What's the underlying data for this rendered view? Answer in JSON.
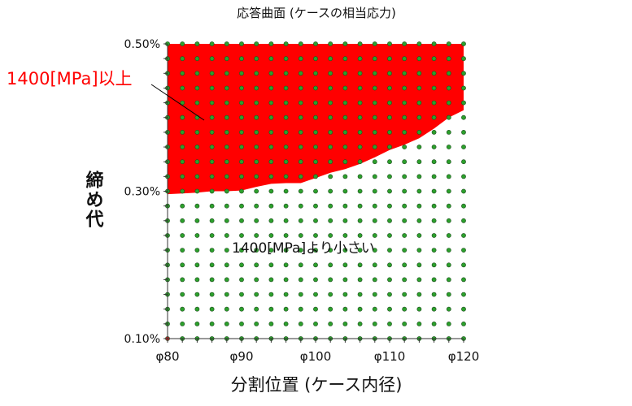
{
  "chart_data": {
    "type": "scatter",
    "title": "応答曲面 (ケースの相当応力)",
    "xlabel": "分割位置 (ケース内径)",
    "ylabel": "締め代",
    "x_ticks": [
      "φ80",
      "φ90",
      "φ100",
      "φ110",
      "φ120"
    ],
    "y_ticks": [
      "0.10%",
      "0.30%",
      "0.50%"
    ],
    "xlim": [
      80,
      120
    ],
    "ylim": [
      0.1,
      0.5
    ],
    "x_grid": [
      80,
      82,
      84,
      86,
      88,
      90,
      92,
      94,
      96,
      98,
      100,
      102,
      104,
      106,
      108,
      110,
      112,
      114,
      116,
      118,
      120
    ],
    "y_grid": [
      0.1,
      0.12,
      0.14,
      0.16,
      0.18,
      0.2,
      0.22,
      0.24,
      0.26,
      0.28,
      0.3,
      0.32,
      0.34,
      0.36,
      0.38,
      0.4,
      0.42,
      0.44,
      0.46,
      0.48,
      0.5
    ],
    "point_color": "#2ca02c",
    "highlight_point": {
      "x": 80,
      "y": 0.1,
      "color": "#d62728"
    },
    "boundary": {
      "x": [
        80,
        82,
        84,
        86,
        88,
        90,
        92,
        94,
        96,
        98,
        100,
        102,
        104,
        106,
        108,
        110,
        112,
        114,
        116,
        118,
        120
      ],
      "y": [
        0.296,
        0.297,
        0.298,
        0.3,
        0.3,
        0.301,
        0.306,
        0.31,
        0.311,
        0.311,
        0.318,
        0.325,
        0.33,
        0.337,
        0.346,
        0.356,
        0.363,
        0.372,
        0.385,
        0.4,
        0.41
      ]
    },
    "regions": [
      {
        "label": "1400[MPa]以上",
        "color": "#ff0000",
        "side": "above"
      },
      {
        "label": "1400[MPa]より小さい",
        "color": "#ffffff",
        "side": "below"
      }
    ],
    "grid": false
  }
}
